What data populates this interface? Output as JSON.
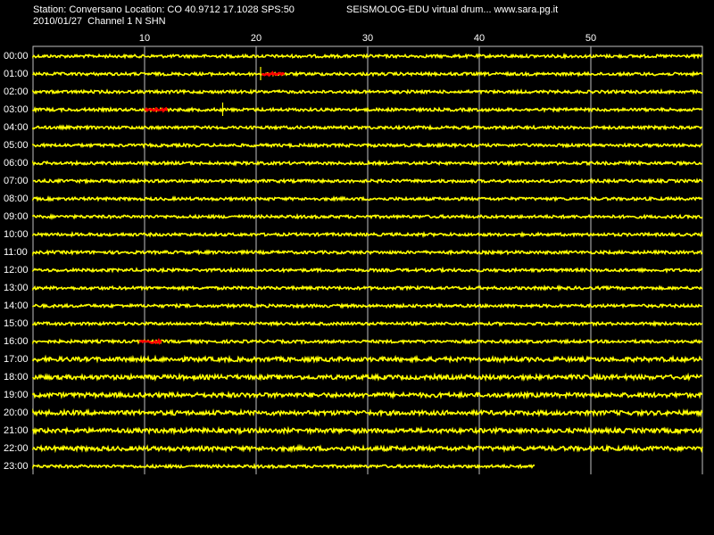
{
  "header": {
    "station_line": "Station: Conversano Location: CO 40.9712 17.1028 SPS:50",
    "date_line": "2010/01/27  Channel 1 N SHN",
    "title": "SEISMOLOG-EDU virtual drum... www.sara.pg.it"
  },
  "colors": {
    "background": "#000000",
    "trace": "#ffff00",
    "event": "#ff0000",
    "grid": "#c0c0c0",
    "text": "#ffffff"
  },
  "minute_ticks": [
    "10",
    "20",
    "30",
    "40",
    "50"
  ],
  "minute_tick_values": [
    10,
    20,
    30,
    40,
    50
  ],
  "minutes_per_line": 60,
  "hours": [
    "00:00",
    "01:00",
    "02:00",
    "03:00",
    "04:00",
    "05:00",
    "06:00",
    "07:00",
    "08:00",
    "09:00",
    "10:00",
    "11:00",
    "12:00",
    "13:00",
    "14:00",
    "15:00",
    "16:00",
    "17:00",
    "18:00",
    "19:00",
    "20:00",
    "21:00",
    "22:00",
    "23:00"
  ],
  "last_line_end_minute": 45,
  "events": [
    {
      "hour": "01:00",
      "start_minute": 20.5,
      "end_minute": 22.5
    },
    {
      "hour": "03:00",
      "start_minute": 10.0,
      "end_minute": 12.0
    },
    {
      "hour": "16:00",
      "start_minute": 9.5,
      "end_minute": 11.5
    }
  ],
  "spikes": [
    {
      "hour": "01:00",
      "minute": 20.4
    },
    {
      "hour": "03:00",
      "minute": 17.0
    }
  ]
}
